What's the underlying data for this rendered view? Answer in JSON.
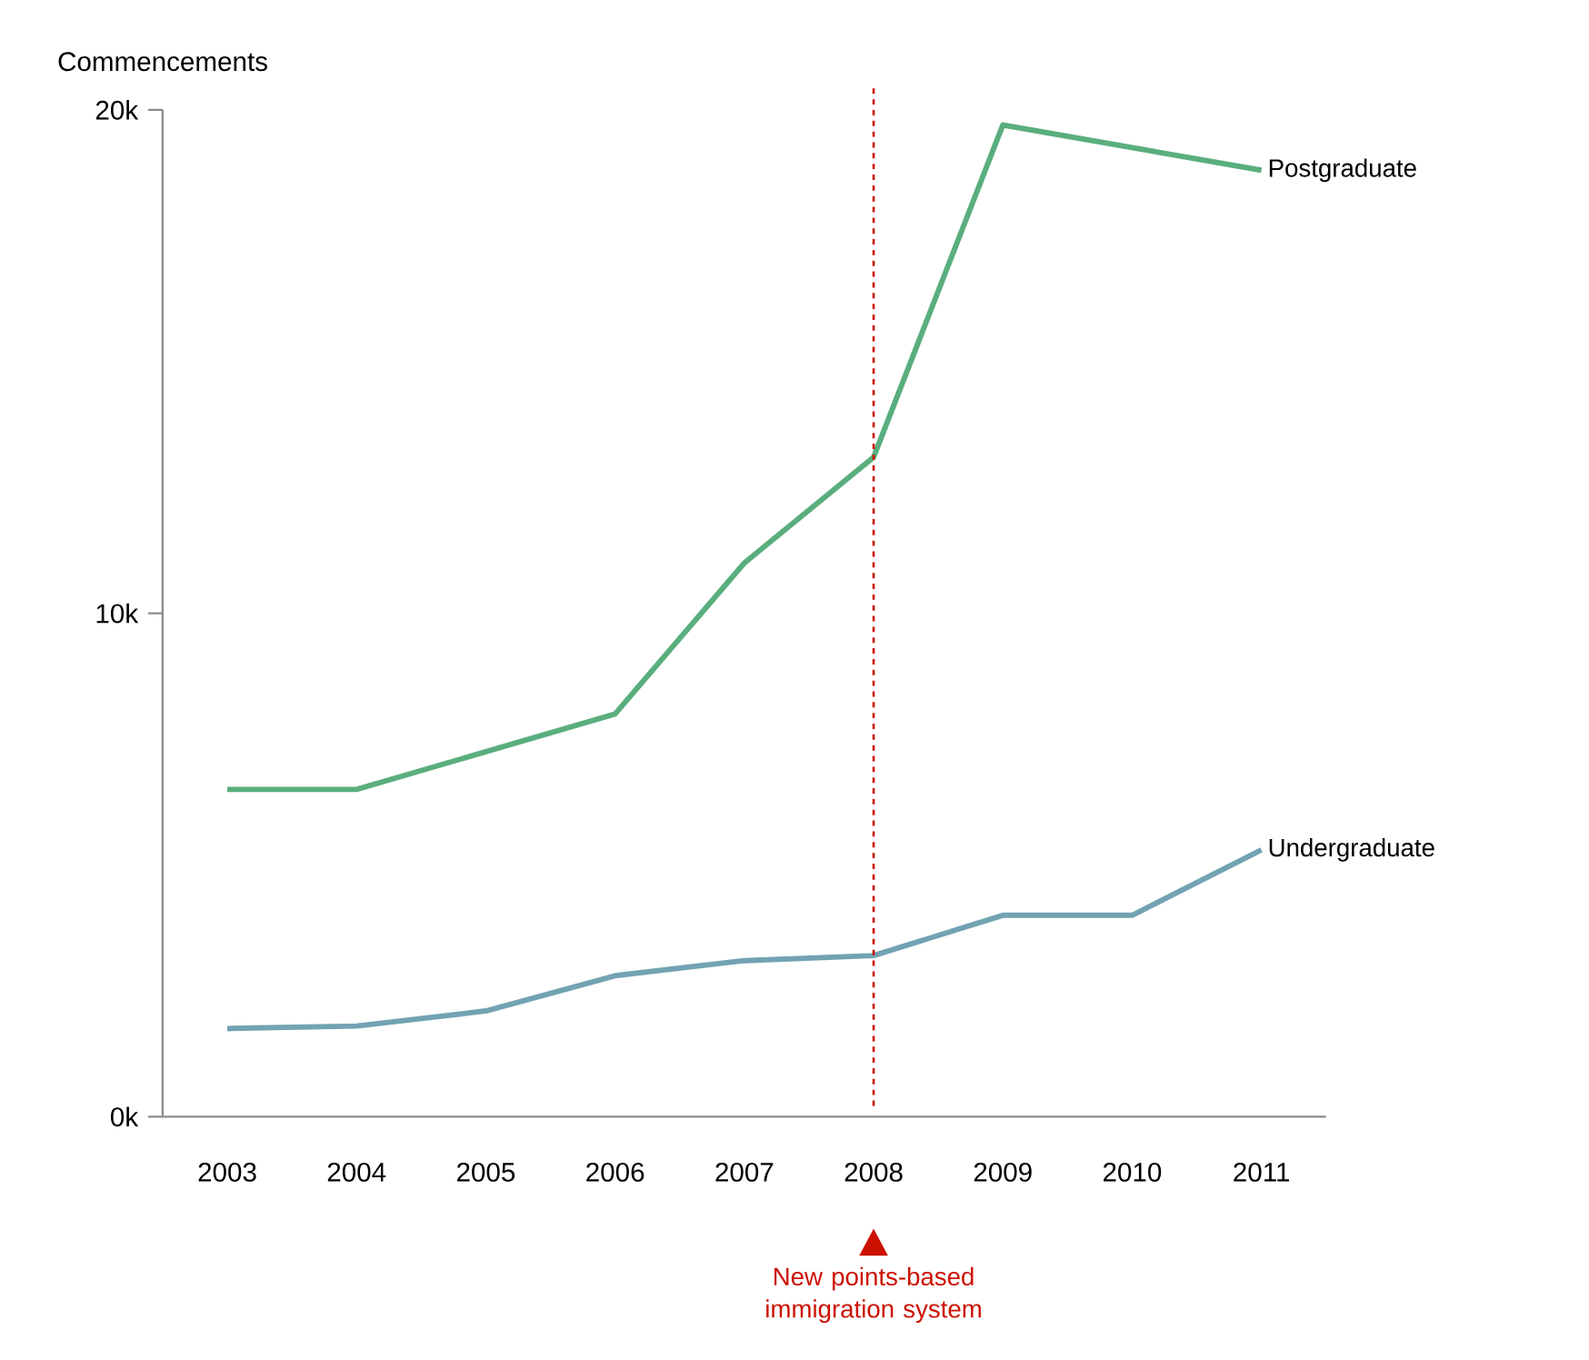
{
  "chart_data": {
    "type": "line",
    "ylabel": "Commencements",
    "categories": [
      "2003",
      "2004",
      "2005",
      "2006",
      "2007",
      "2008",
      "2009",
      "2010",
      "2011"
    ],
    "ylim": [
      0,
      20000
    ],
    "yticks": [
      {
        "value": 0,
        "label": "0k"
      },
      {
        "value": 10000,
        "label": "10k"
      },
      {
        "value": 20000,
        "label": "20k"
      }
    ],
    "series": [
      {
        "name": "Postgraduate",
        "color": "#5aae7e",
        "values": [
          6500,
          6500,
          7250,
          8000,
          11000,
          13100,
          19700,
          19250,
          18800
        ]
      },
      {
        "name": "Undergraduate",
        "color": "#72a3b3",
        "values": [
          1750,
          1800,
          2100,
          2800,
          3100,
          3200,
          4000,
          4000,
          5300
        ]
      }
    ],
    "ref_lines": [
      {
        "axis": "x",
        "value": "2008",
        "label": "New points-based immigration system",
        "color": "#cc1100",
        "line_style": "dashed"
      }
    ],
    "line_style": "solid"
  }
}
